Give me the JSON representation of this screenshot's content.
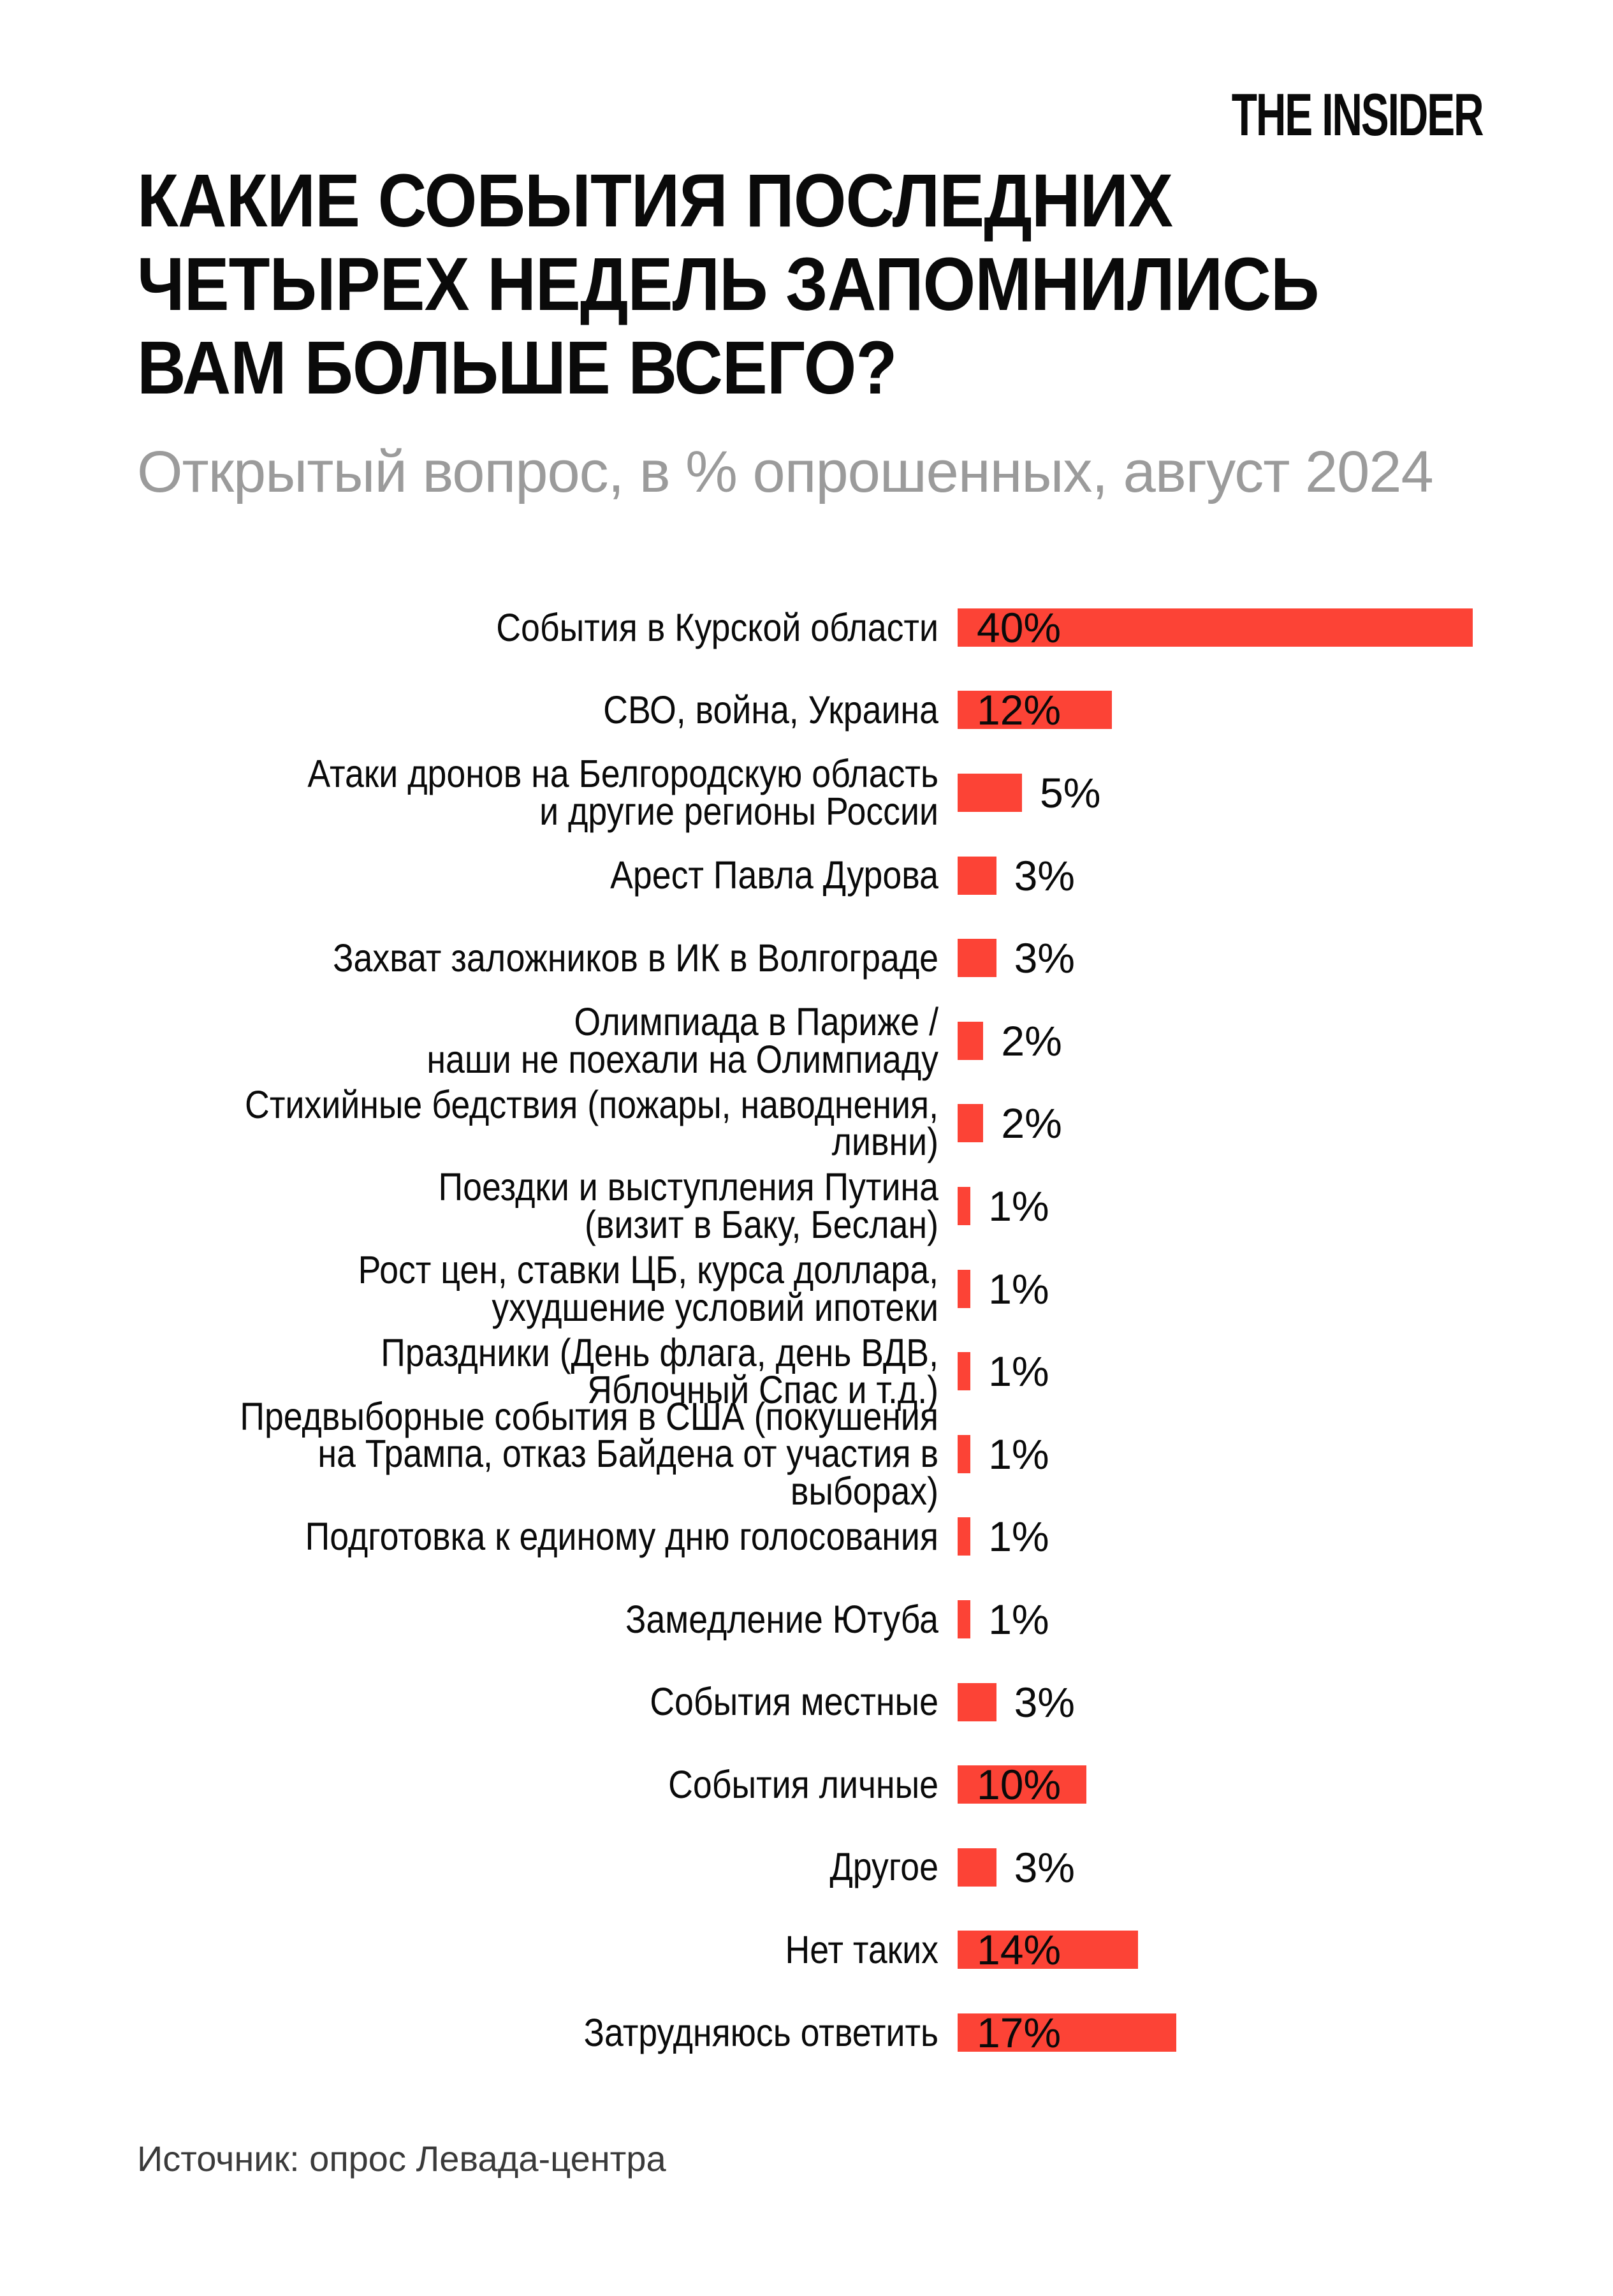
{
  "logo": {
    "text": "THE INSIDER"
  },
  "header": {
    "title": "КАКИЕ СОБЫТИЯ ПОСЛЕДНИХ\nЧЕТЫРЕХ НЕДЕЛЬ ЗАПОМНИЛИСЬ\nВАМ БОЛЬШЕ ВСЕГО?",
    "subtitle": "Открытый вопрос, в % опрошенных, август 2024"
  },
  "chart_data": {
    "type": "bar",
    "orientation": "horizontal",
    "unit": "%",
    "title": "Какие события последних четырех недель запомнились вам больше всего?",
    "subtitle": "Открытый вопрос, в % опрошенных, август 2024",
    "bar_color": "#fc4336",
    "value_label_color": "#0a0a0a",
    "value_labels_inside_bar_when_value_at_least": 10,
    "xlim": [
      0,
      40
    ],
    "grid": false,
    "legend": false,
    "categories": [
      "События в Курской области",
      "СВО, война, Украина",
      "Атаки дронов на Белгородскую область\nи другие регионы России",
      "Арест Павла Дурова",
      "Захват заложников в ИК в Волгограде",
      "Олимпиада в Париже /\nнаши не поехали на Олимпиаду",
      "Стихийные бедствия (пожары, наводнения, ливни)",
      "Поездки и выступления Путина\n(визит в Баку, Беслан)",
      "Рост цен, ставки ЦБ, курса доллара,\nухудшение условий ипотеки",
      "Праздники (День флага, день ВДВ,\nЯблочный Спас и т.д.)",
      "Предвыборные события в США (покушения\nна Трампа, отказ Байдена от участия в выборах)",
      "Подготовка к единому дню голосования",
      "Замедление Ютуба",
      "События местные",
      "События личные",
      "Другое",
      "Нет таких",
      "Затрудняюсь ответить"
    ],
    "values": [
      40,
      12,
      5,
      3,
      3,
      2,
      2,
      1,
      1,
      1,
      1,
      1,
      1,
      3,
      10,
      3,
      14,
      17
    ],
    "value_labels": [
      "40%",
      "12%",
      "5%",
      "3%",
      "3%",
      "2%",
      "2%",
      "1%",
      "1%",
      "1%",
      "1%",
      "1%",
      "1%",
      "3%",
      "10%",
      "3%",
      "14%",
      "17%"
    ]
  },
  "footer": {
    "source": "Источник: опрос Левада-центра"
  }
}
